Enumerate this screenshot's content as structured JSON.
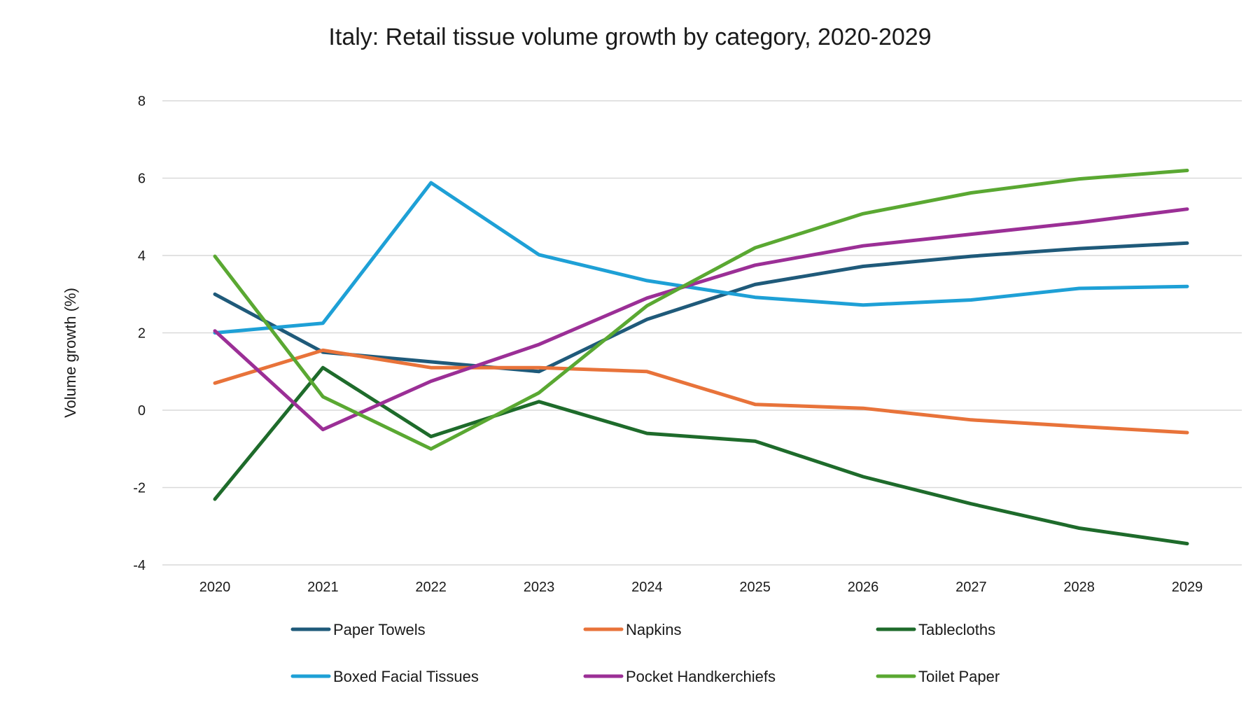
{
  "chart_data": {
    "type": "line",
    "title": "Italy: Retail tissue volume growth by category, 2020-2029",
    "xlabel": "",
    "ylabel": "Volume growth (%)",
    "ylim": [
      -4,
      8
    ],
    "yticks": [
      -4,
      -2,
      0,
      2,
      4,
      6,
      8
    ],
    "grid": true,
    "legend_position": "bottom",
    "x": [
      "2020",
      "2021",
      "2022",
      "2023",
      "2024",
      "2025",
      "2026",
      "2027",
      "2028",
      "2029"
    ],
    "series": [
      {
        "name": "Paper Towels",
        "color": "#1f5a7a",
        "values": [
          3.0,
          1.5,
          1.25,
          1.0,
          2.35,
          3.25,
          3.72,
          3.98,
          4.18,
          4.32
        ]
      },
      {
        "name": "Napkins",
        "color": "#e8733a",
        "values": [
          0.7,
          1.55,
          1.1,
          1.1,
          1.0,
          0.15,
          0.05,
          -0.25,
          -0.42,
          -0.58
        ]
      },
      {
        "name": "Tablecloths",
        "color": "#1e6b2b",
        "values": [
          -2.3,
          1.1,
          -0.68,
          0.22,
          -0.6,
          -0.8,
          -1.72,
          -2.42,
          -3.05,
          -3.45
        ]
      },
      {
        "name": "Boxed Facial Tissues",
        "color": "#1ea0d6",
        "values": [
          2.0,
          2.25,
          5.88,
          4.02,
          3.35,
          2.92,
          2.72,
          2.85,
          3.15,
          3.2
        ]
      },
      {
        "name": "Pocket Handkerchiefs",
        "color": "#9b2f96",
        "values": [
          2.05,
          -0.5,
          0.75,
          1.7,
          2.9,
          3.75,
          4.25,
          4.55,
          4.85,
          5.2
        ]
      },
      {
        "name": "Toilet Paper",
        "color": "#5aa832",
        "values": [
          3.98,
          0.35,
          -1.0,
          0.45,
          2.7,
          4.2,
          5.08,
          5.62,
          5.98,
          6.2
        ]
      }
    ]
  }
}
